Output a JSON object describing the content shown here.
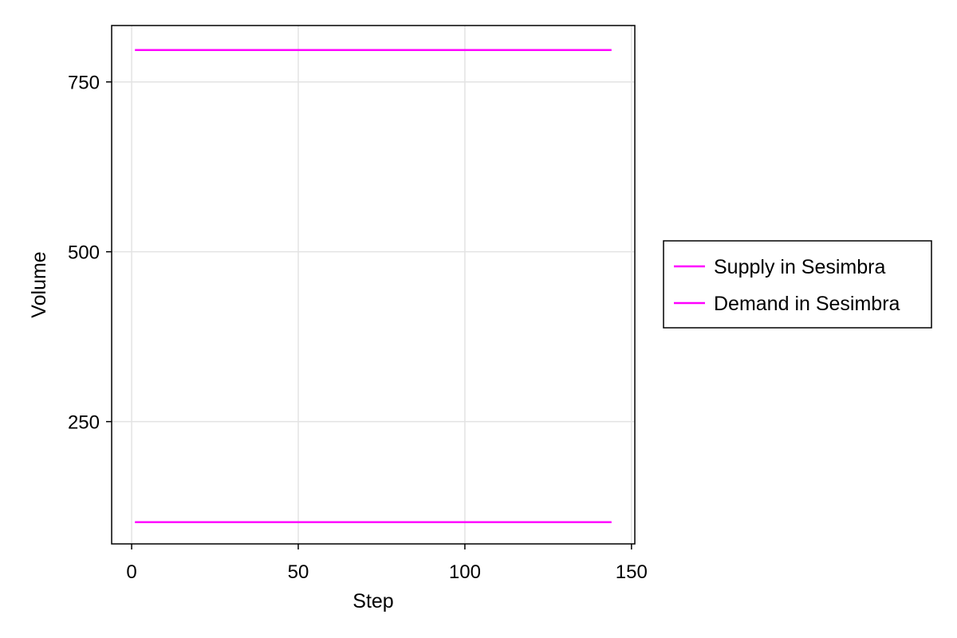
{
  "chart_data": {
    "type": "line",
    "title": "",
    "xlabel": "Step",
    "ylabel": "Volume",
    "xlim": [
      -6,
      151
    ],
    "ylim": [
      70,
      833
    ],
    "xticks": [
      0,
      50,
      100,
      150
    ],
    "yticks": [
      250,
      500,
      750
    ],
    "grid": true,
    "legend_position": "right",
    "series": [
      {
        "name": "Supply in Sesimbra",
        "color": "#ff00ff",
        "x": [
          1,
          144
        ],
        "y": [
          797,
          797
        ]
      },
      {
        "name": "Demand in Sesimbra",
        "color": "#ff00ff",
        "x": [
          1,
          144
        ],
        "y": [
          102,
          102
        ]
      }
    ]
  }
}
